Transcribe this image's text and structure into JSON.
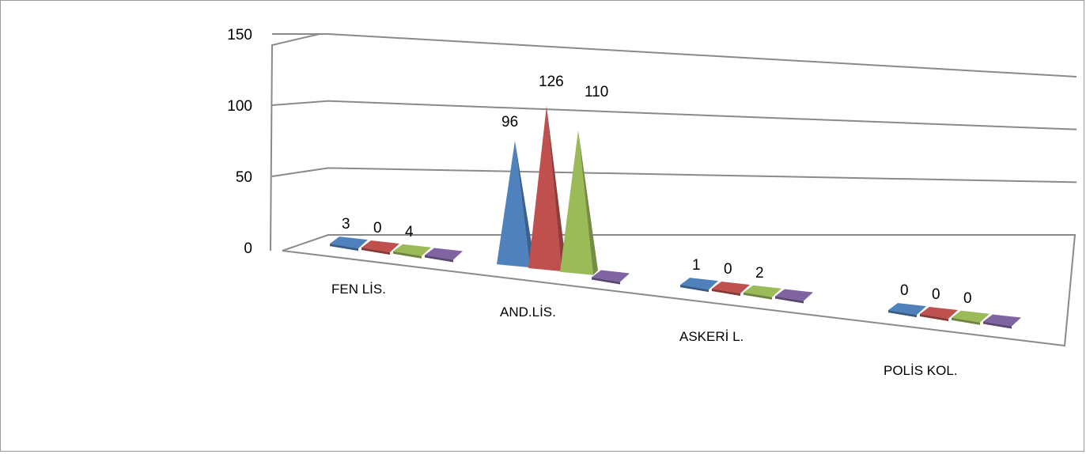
{
  "chart_data": {
    "type": "bar",
    "subtype": "3d-cone",
    "categories": [
      "FEN LİS.",
      "AND.LİS.",
      "ASKERİ L.",
      "POLİS KOL."
    ],
    "series": [
      {
        "values": [
          3,
          96,
          1,
          0
        ],
        "color": "#4f81bd"
      },
      {
        "values": [
          0,
          126,
          0,
          0
        ],
        "color": "#c0504d"
      },
      {
        "values": [
          4,
          110,
          2,
          0
        ],
        "color": "#9bbb59"
      },
      {
        "values": [
          0,
          0,
          0,
          0
        ],
        "color": "#8064a2"
      }
    ],
    "data_labels": [
      [
        "3",
        "96",
        "1",
        "0"
      ],
      [
        "0",
        "126",
        "0",
        "0"
      ],
      [
        "4",
        "110",
        "2",
        "0"
      ],
      [
        "",
        "",
        "",
        ""
      ]
    ],
    "y_ticks": [
      "0",
      "50",
      "100",
      "150"
    ],
    "ylim": [
      0,
      150
    ],
    "gridlines": true,
    "legend": "none"
  }
}
